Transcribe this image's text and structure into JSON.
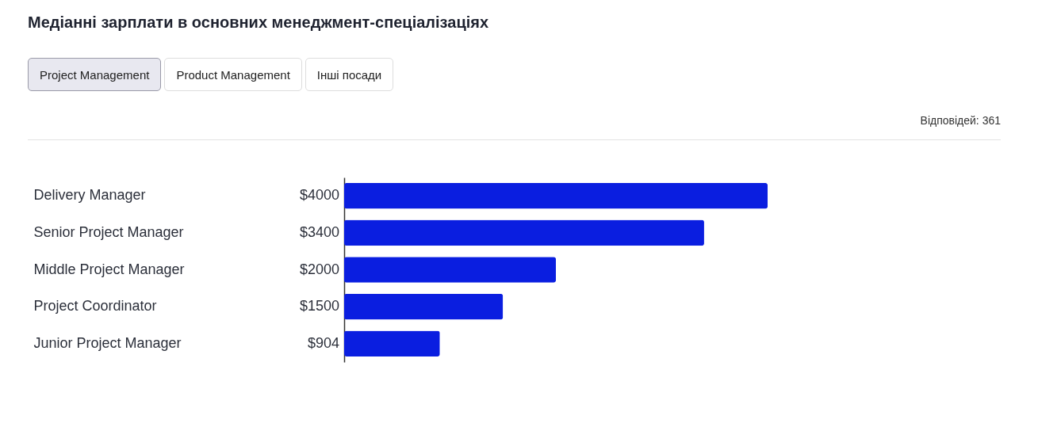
{
  "chart_data": {
    "type": "bar",
    "orientation": "horizontal",
    "title": "Медіанні зарплати в основних менеджмент-спеціалізаціях",
    "annotations": [
      "Project Management",
      "Product Management",
      "Інші посади",
      "Відповідей: 361"
    ],
    "categories": [
      "Delivery Manager",
      "Senior Project Manager",
      "Middle Project Manager",
      "Project Coordinator",
      "Junior Project Manager"
    ],
    "values": [
      4000,
      3400,
      2000,
      1500,
      904
    ],
    "value_labels": [
      "$4000",
      "$3400",
      "$2000",
      "$1500",
      "$904"
    ],
    "color": "#0a1ee0"
  }
}
